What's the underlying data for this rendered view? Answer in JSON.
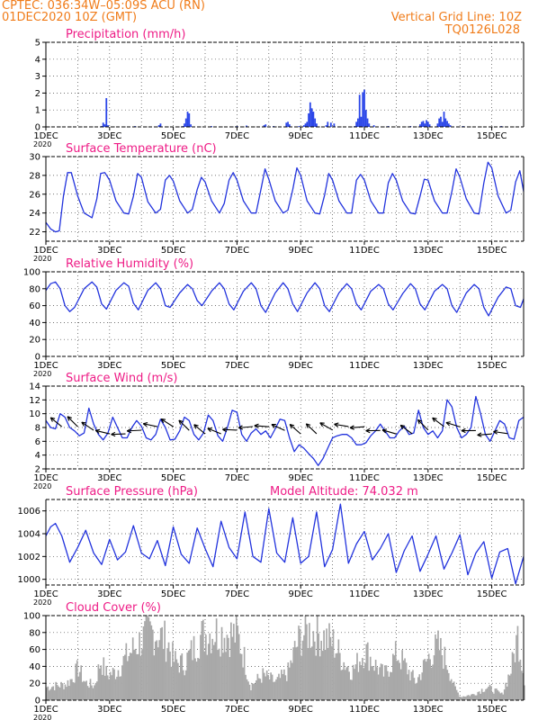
{
  "header": {
    "line1": "CPTEC:   036:34W–05:09S   ACU (RN)",
    "line2": "01DEC2020 10Z (GMT)",
    "grid_note": "Vertical Grid Line: 10Z",
    "run_id": "TQ0126L028"
  },
  "colors": {
    "line": "#2233dd",
    "bar": "#2b46e8",
    "cloud": "#a9a9a9",
    "title": "#ee1c86",
    "header": "#f07c1a"
  },
  "x_axis": {
    "start": "2020-12-01T10Z",
    "end": "2020-12-16T10Z",
    "tick_labels": [
      "1DEC",
      "3DEC",
      "5DEC",
      "7DEC",
      "9DEC",
      "11DEC",
      "13DEC",
      "15DEC"
    ],
    "tick_days": [
      0,
      2,
      4,
      6,
      8,
      10,
      12,
      14
    ],
    "year_label": "2020",
    "grid": "vertical dotted lines each day at 10Z"
  },
  "chart_data": [
    {
      "id": "precip",
      "type": "bar",
      "title": "Precipitation (mm/h)",
      "ylim": [
        0,
        5
      ],
      "yticks": [
        0,
        1,
        2,
        3,
        4,
        5
      ],
      "points": [
        [
          1.75,
          0.05
        ],
        [
          1.8,
          0.25
        ],
        [
          1.85,
          0.15
        ],
        [
          1.9,
          1.7
        ],
        [
          1.95,
          0.1
        ],
        [
          2.8,
          0.05
        ],
        [
          3.55,
          0.1
        ],
        [
          3.6,
          0.2
        ],
        [
          4.3,
          0.05
        ],
        [
          4.35,
          0.2
        ],
        [
          4.4,
          0.5
        ],
        [
          4.45,
          0.9
        ],
        [
          4.5,
          0.8
        ],
        [
          4.55,
          0.15
        ],
        [
          5.2,
          0.05
        ],
        [
          6.0,
          0.05
        ],
        [
          6.3,
          0.08
        ],
        [
          6.85,
          0.1
        ],
        [
          6.9,
          0.15
        ],
        [
          7.15,
          0.05
        ],
        [
          7.55,
          0.25
        ],
        [
          7.6,
          0.3
        ],
        [
          7.65,
          0.15
        ],
        [
          7.95,
          0.05
        ],
        [
          8.1,
          0.1
        ],
        [
          8.15,
          0.2
        ],
        [
          8.2,
          0.3
        ],
        [
          8.25,
          0.8
        ],
        [
          8.3,
          1.45
        ],
        [
          8.35,
          1.1
        ],
        [
          8.4,
          0.9
        ],
        [
          8.45,
          0.5
        ],
        [
          8.5,
          0.2
        ],
        [
          8.8,
          0.1
        ],
        [
          8.85,
          0.3
        ],
        [
          8.95,
          0.25
        ],
        [
          9.05,
          0.2
        ],
        [
          9.7,
          0.05
        ],
        [
          9.75,
          0.3
        ],
        [
          9.8,
          0.5
        ],
        [
          9.85,
          1.9
        ],
        [
          9.9,
          0.6
        ],
        [
          9.95,
          2.05
        ],
        [
          10.0,
          2.2
        ],
        [
          10.05,
          1.0
        ],
        [
          10.1,
          0.5
        ],
        [
          10.15,
          0.2
        ],
        [
          10.3,
          0.1
        ],
        [
          10.75,
          0.05
        ],
        [
          11.45,
          0.05
        ],
        [
          11.75,
          0.15
        ],
        [
          11.8,
          0.3
        ],
        [
          11.85,
          0.35
        ],
        [
          11.9,
          0.2
        ],
        [
          11.95,
          0.4
        ],
        [
          12.0,
          0.3
        ],
        [
          12.05,
          0.15
        ],
        [
          12.3,
          0.2
        ],
        [
          12.35,
          0.5
        ],
        [
          12.4,
          0.6
        ],
        [
          12.45,
          0.3
        ],
        [
          12.5,
          0.9
        ],
        [
          12.55,
          0.5
        ],
        [
          12.6,
          0.35
        ],
        [
          12.65,
          0.2
        ],
        [
          12.7,
          0.1
        ],
        [
          13.1,
          0.05
        ],
        [
          14.3,
          0.05
        ]
      ]
    },
    {
      "id": "temp",
      "type": "line",
      "title": "Surface Temperature (nC)",
      "ylim": [
        21,
        30
      ],
      "yticks": [
        22,
        24,
        26,
        28,
        30
      ],
      "x": [
        0,
        0.15,
        0.3,
        0.42,
        0.55,
        0.68,
        0.8,
        1.0,
        1.2,
        1.45,
        1.6,
        1.72,
        1.85,
        2.0,
        2.2,
        2.45,
        2.6,
        2.75,
        2.88,
        3.0,
        3.2,
        3.45,
        3.6,
        3.75,
        3.88,
        4.0,
        4.2,
        4.45,
        4.6,
        4.75,
        4.88,
        5.0,
        5.2,
        5.45,
        5.6,
        5.75,
        5.88,
        6.0,
        6.2,
        6.45,
        6.6,
        6.75,
        6.88,
        7.0,
        7.2,
        7.45,
        7.6,
        7.75,
        7.88,
        8.0,
        8.2,
        8.45,
        8.6,
        8.75,
        8.88,
        9.0,
        9.2,
        9.45,
        9.6,
        9.75,
        9.88,
        10.0,
        10.2,
        10.45,
        10.6,
        10.75,
        10.88,
        11.0,
        11.2,
        11.45,
        11.6,
        11.75,
        11.88,
        12.0,
        12.2,
        12.45,
        12.6,
        12.75,
        12.88,
        13.0,
        13.2,
        13.45,
        13.6,
        13.75,
        13.88,
        14.0,
        14.2,
        14.45,
        14.6,
        14.75,
        14.88,
        15.0
      ],
      "y": [
        23.0,
        22.3,
        22.0,
        22.1,
        25.8,
        28.3,
        28.3,
        25.8,
        24.0,
        23.5,
        25.5,
        28.2,
        28.3,
        27.5,
        25.3,
        24.0,
        23.9,
        25.8,
        28.2,
        27.8,
        25.2,
        24.0,
        24.4,
        27.5,
        28.0,
        27.4,
        25.3,
        24.0,
        24.4,
        26.5,
        27.8,
        27.3,
        25.3,
        24.0,
        25.0,
        27.5,
        28.3,
        27.5,
        25.3,
        24.0,
        24.0,
        26.5,
        28.7,
        27.6,
        25.3,
        24.0,
        24.3,
        26.5,
        28.8,
        28.0,
        25.3,
        24.0,
        23.9,
        25.9,
        28.2,
        27.5,
        25.3,
        24.0,
        24.0,
        27.5,
        28.1,
        27.5,
        25.3,
        24.0,
        24.0,
        27.2,
        28.2,
        27.5,
        25.3,
        24.0,
        23.9,
        25.8,
        27.6,
        27.5,
        25.3,
        24.0,
        24.0,
        26.3,
        28.7,
        27.8,
        25.5,
        24.0,
        23.9,
        27.2,
        29.4,
        28.8,
        25.8,
        24.0,
        24.3,
        27.3,
        28.5,
        26.3
      ]
    },
    {
      "id": "rh",
      "type": "line",
      "title": "Relative Humidity (%)",
      "ylim": [
        0,
        100
      ],
      "yticks": [
        0,
        20,
        40,
        60,
        80,
        100
      ],
      "x": [
        0,
        0.15,
        0.3,
        0.45,
        0.6,
        0.75,
        0.9,
        1.2,
        1.45,
        1.6,
        1.75,
        1.9,
        2.2,
        2.45,
        2.6,
        2.75,
        2.9,
        3.2,
        3.45,
        3.6,
        3.75,
        3.9,
        4.2,
        4.45,
        4.6,
        4.75,
        4.9,
        5.2,
        5.45,
        5.6,
        5.75,
        5.9,
        6.2,
        6.45,
        6.6,
        6.75,
        6.9,
        7.2,
        7.45,
        7.6,
        7.75,
        7.9,
        8.2,
        8.45,
        8.6,
        8.75,
        8.9,
        9.2,
        9.45,
        9.6,
        9.75,
        9.9,
        10.2,
        10.45,
        10.6,
        10.75,
        10.9,
        11.2,
        11.45,
        11.6,
        11.75,
        11.9,
        12.2,
        12.45,
        12.6,
        12.75,
        12.9,
        13.2,
        13.45,
        13.6,
        13.75,
        13.9,
        14.2,
        14.45,
        14.6,
        14.75,
        14.9,
        15.0
      ],
      "y": [
        78,
        86,
        88,
        80,
        60,
        53,
        58,
        80,
        88,
        82,
        62,
        56,
        78,
        87,
        83,
        63,
        55,
        78,
        87,
        80,
        60,
        58,
        75,
        85,
        80,
        66,
        60,
        77,
        87,
        80,
        62,
        55,
        77,
        87,
        80,
        60,
        52,
        75,
        87,
        80,
        62,
        53,
        75,
        87,
        80,
        60,
        53,
        75,
        86,
        80,
        62,
        55,
        77,
        85,
        80,
        62,
        55,
        74,
        86,
        80,
        62,
        55,
        77,
        85,
        80,
        60,
        52,
        75,
        85,
        80,
        58,
        48,
        70,
        82,
        80,
        60,
        58,
        68
      ]
    },
    {
      "id": "wind",
      "type": "line",
      "title": "Surface Wind (m/s)",
      "ylim": [
        2,
        14
      ],
      "yticks": [
        2,
        4,
        6,
        8,
        10,
        12,
        14
      ],
      "x": [
        0,
        0.15,
        0.3,
        0.45,
        0.6,
        0.75,
        0.9,
        1.05,
        1.2,
        1.35,
        1.5,
        1.65,
        1.8,
        1.95,
        2.1,
        2.25,
        2.4,
        2.55,
        2.7,
        2.85,
        3.0,
        3.15,
        3.3,
        3.45,
        3.6,
        3.75,
        3.9,
        4.05,
        4.2,
        4.35,
        4.5,
        4.65,
        4.8,
        4.95,
        5.1,
        5.25,
        5.4,
        5.55,
        5.7,
        5.85,
        6.0,
        6.15,
        6.3,
        6.45,
        6.6,
        6.75,
        6.9,
        7.05,
        7.2,
        7.35,
        7.5,
        7.65,
        7.8,
        7.95,
        8.1,
        8.25,
        8.4,
        8.55,
        8.7,
        8.85,
        9.0,
        9.15,
        9.3,
        9.45,
        9.6,
        9.75,
        9.9,
        10.05,
        10.2,
        10.35,
        10.5,
        10.65,
        10.8,
        10.95,
        11.1,
        11.25,
        11.4,
        11.55,
        11.7,
        11.85,
        12.0,
        12.15,
        12.3,
        12.45,
        12.6,
        12.75,
        12.9,
        13.05,
        13.2,
        13.35,
        13.5,
        13.65,
        13.8,
        13.95,
        14.1,
        14.25,
        14.4,
        14.55,
        14.7,
        14.85,
        15.0
      ],
      "y": [
        9.0,
        8.0,
        7.8,
        10.0,
        9.5,
        8.0,
        7.5,
        6.8,
        7.2,
        10.8,
        8.5,
        7.0,
        6.2,
        7.2,
        9.5,
        8.0,
        6.5,
        6.5,
        8.0,
        9.0,
        8.2,
        6.5,
        6.2,
        7.0,
        9.2,
        8.0,
        6.2,
        6.3,
        7.5,
        9.5,
        9.0,
        7.0,
        6.2,
        7.2,
        9.8,
        9.0,
        6.8,
        6.0,
        8.0,
        10.5,
        10.2,
        7.0,
        6.0,
        7.2,
        7.8,
        7.0,
        7.5,
        6.5,
        7.8,
        9.2,
        9.0,
        6.5,
        4.5,
        5.5,
        5.0,
        4.2,
        3.5,
        2.5,
        3.5,
        5.0,
        6.5,
        6.8,
        7.0,
        7.0,
        6.5,
        5.5,
        5.5,
        5.8,
        6.8,
        7.5,
        8.5,
        7.5,
        6.5,
        6.5,
        7.5,
        8.2,
        7.0,
        7.2,
        10.5,
        8.0,
        7.0,
        7.5,
        6.5,
        7.5,
        12.0,
        11.0,
        8.0,
        6.5,
        7.0,
        8.0,
        12.5,
        10.0,
        7.0,
        6.0,
        7.5,
        9.0,
        8.5,
        6.5,
        6.3,
        9.0,
        9.5
      ]
    },
    {
      "id": "pressure",
      "type": "line",
      "title": "Surface Pressure (hPa)",
      "annotation": "Model Altitude: 74.032 m",
      "ylim": [
        999.5,
        1007
      ],
      "yticks": [
        1000,
        1002,
        1004,
        1006
      ],
      "x": [
        0,
        0.15,
        0.3,
        0.5,
        0.75,
        1.0,
        1.25,
        1.5,
        1.75,
        2.0,
        2.25,
        2.5,
        2.75,
        3.0,
        3.25,
        3.5,
        3.75,
        4.0,
        4.25,
        4.5,
        4.75,
        5.0,
        5.25,
        5.5,
        5.75,
        6.0,
        6.25,
        6.5,
        6.75,
        7.0,
        7.25,
        7.5,
        7.75,
        8.0,
        8.25,
        8.5,
        8.75,
        9.0,
        9.25,
        9.5,
        9.75,
        10.0,
        10.25,
        10.5,
        10.75,
        11.0,
        11.25,
        11.5,
        11.75,
        12.0,
        12.25,
        12.5,
        12.75,
        13.0,
        13.25,
        13.5,
        13.75,
        14.0,
        14.25,
        14.5,
        14.75,
        15.0
      ],
      "y": [
        1003.8,
        1004.6,
        1004.9,
        1003.8,
        1001.5,
        1002.8,
        1004.3,
        1002.3,
        1001.3,
        1003.5,
        1001.7,
        1002.4,
        1004.7,
        1002.3,
        1001.8,
        1003.4,
        1001.2,
        1004.6,
        1002.2,
        1001.4,
        1004.5,
        1002.7,
        1001.1,
        1005.1,
        1002.8,
        1001.8,
        1005.9,
        1002.0,
        1001.5,
        1006.2,
        1002.3,
        1001.5,
        1005.4,
        1001.4,
        1002.0,
        1005.9,
        1001.1,
        1002.6,
        1006.6,
        1001.4,
        1003.1,
        1004.2,
        1001.7,
        1002.7,
        1004.0,
        1000.6,
        1002.5,
        1003.8,
        1000.7,
        1002.2,
        1003.8,
        1000.9,
        1002.3,
        1003.9,
        1000.4,
        1002.3,
        1003.3,
        1000.1,
        1002.4,
        1002.7,
        999.6,
        1002.0
      ]
    },
    {
      "id": "cloud",
      "type": "bar",
      "title": "Cloud Cover (%)",
      "ylim": [
        0,
        100
      ],
      "yticks": [
        0,
        20,
        40,
        60,
        80,
        100
      ],
      "profile": [
        [
          0,
          18
        ],
        [
          0.6,
          22
        ],
        [
          0.8,
          30
        ],
        [
          1.0,
          45
        ],
        [
          1.2,
          25
        ],
        [
          1.5,
          20
        ],
        [
          1.7,
          55
        ],
        [
          1.9,
          35
        ],
        [
          2.2,
          40
        ],
        [
          2.5,
          60
        ],
        [
          2.8,
          75
        ],
        [
          3.0,
          85
        ],
        [
          3.3,
          95
        ],
        [
          3.5,
          92
        ],
        [
          3.8,
          80
        ],
        [
          4.0,
          55
        ],
        [
          4.3,
          50
        ],
        [
          4.6,
          70
        ],
        [
          4.8,
          88
        ],
        [
          5.2,
          95
        ],
        [
          5.6,
          93
        ],
        [
          6.0,
          90
        ],
        [
          6.2,
          60
        ],
        [
          6.4,
          20
        ],
        [
          6.8,
          35
        ],
        [
          7.2,
          25
        ],
        [
          7.6,
          40
        ],
        [
          7.8,
          70
        ],
        [
          8.0,
          90
        ],
        [
          8.2,
          96
        ],
        [
          8.5,
          93
        ],
        [
          8.8,
          85
        ],
        [
          9.0,
          80
        ],
        [
          9.3,
          55
        ],
        [
          9.6,
          40
        ],
        [
          9.8,
          55
        ],
        [
          10.0,
          70
        ],
        [
          10.3,
          50
        ],
        [
          10.6,
          35
        ],
        [
          11.0,
          65
        ],
        [
          11.3,
          45
        ],
        [
          11.6,
          25
        ],
        [
          12.0,
          60
        ],
        [
          12.3,
          75
        ],
        [
          12.6,
          50
        ],
        [
          12.8,
          18
        ],
        [
          13.0,
          5
        ],
        [
          13.4,
          8
        ],
        [
          13.8,
          18
        ],
        [
          14.0,
          15
        ],
        [
          14.3,
          8
        ],
        [
          14.6,
          45
        ],
        [
          14.8,
          92
        ],
        [
          15.0,
          30
        ]
      ]
    }
  ]
}
